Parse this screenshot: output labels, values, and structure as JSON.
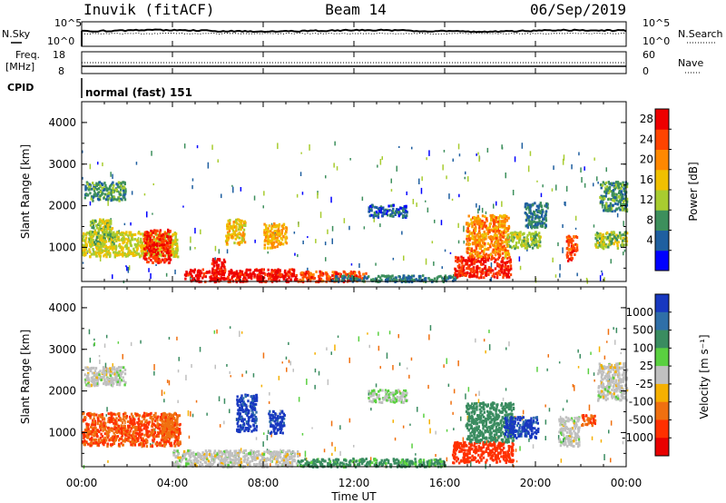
{
  "header": {
    "station": "Inuvik (fitACF)",
    "beam": "Beam 14",
    "date": "06/Sep/2019"
  },
  "nsky": {
    "left_label": "N.Sky",
    "right_label": "N.Search",
    "left_ticks": [
      "10^5",
      "10^0"
    ],
    "right_ticks": [
      "10^5",
      "10^0"
    ]
  },
  "freq": {
    "left_label_1": "Freq.",
    "left_label_2": "[MHz]",
    "right_label": "Nave",
    "left_ticks": [
      "18",
      "8"
    ],
    "right_ticks": [
      "60",
      "0"
    ]
  },
  "cpid": {
    "label": "CPID",
    "value": "normal (fast) 151"
  },
  "power_panel": {
    "ylabel": "Slant Range [km]",
    "yticks": [
      "4000",
      "3000",
      "2000",
      "1000"
    ],
    "colorbar_label": "Power [dB]",
    "colorbar_ticks": [
      "28",
      "24",
      "20",
      "16",
      "12",
      "8",
      "4"
    ],
    "colors": [
      "#0000ff",
      "#1f5fa0",
      "#3d8f5c",
      "#a8cc30",
      "#f0c000",
      "#ff8800",
      "#ff4400",
      "#ee0000"
    ]
  },
  "velocity_panel": {
    "ylabel": "Slant Range [km]",
    "yticks": [
      "4000",
      "3000",
      "2000",
      "1000"
    ],
    "colorbar_label": "Velocity [m s⁻¹]",
    "colorbar_ticks": [
      "1000",
      "500",
      "100",
      "25",
      "-25",
      "-100",
      "-500",
      "-1000"
    ],
    "colors": [
      "#1838c0",
      "#2f6fa8",
      "#3a8c60",
      "#5ad040",
      "#c0c0c0",
      "#f5b000",
      "#f07010",
      "#ff3000",
      "#e80000"
    ]
  },
  "x_axis": {
    "ticks": [
      "00:00",
      "04:00",
      "08:00",
      "12:00",
      "16:00",
      "20:00",
      "00:00"
    ],
    "label": "Time UT"
  },
  "chart_data": [
    {
      "type": "heatmap",
      "title": "Power",
      "xlabel": "Time UT",
      "ylabel": "Slant Range [km]",
      "xlim": [
        0,
        24
      ],
      "ylim": [
        180,
        4500
      ],
      "colorbar": {
        "label": "Power [dB]",
        "range": [
          0,
          32
        ]
      },
      "regions": [
        {
          "t": [
            0.0,
            4.2
          ],
          "r": [
            800,
            1400
          ],
          "value": 16
        },
        {
          "t": [
            2.7,
            3.9
          ],
          "r": [
            650,
            1450
          ],
          "value": 28
        },
        {
          "t": [
            0.1,
            1.9
          ],
          "r": [
            2150,
            2600
          ],
          "value": 10
        },
        {
          "t": [
            0.3,
            1.4
          ],
          "r": [
            1100,
            1700
          ],
          "value": 14
        },
        {
          "t": [
            4.5,
            9.5
          ],
          "r": [
            200,
            500
          ],
          "value": 30
        },
        {
          "t": [
            5.7,
            6.3
          ],
          "r": [
            350,
            750
          ],
          "value": 30
        },
        {
          "t": [
            6.3,
            7.2
          ],
          "r": [
            1100,
            1700
          ],
          "value": 18
        },
        {
          "t": [
            8.0,
            9.0
          ],
          "r": [
            1000,
            1600
          ],
          "value": 20
        },
        {
          "t": [
            9.5,
            12.5
          ],
          "r": [
            200,
            450
          ],
          "value": 26
        },
        {
          "t": [
            11.0,
            16.5
          ],
          "r": [
            200,
            350
          ],
          "value": 8
        },
        {
          "t": [
            12.6,
            14.3
          ],
          "r": [
            1750,
            2050
          ],
          "value": 6
        },
        {
          "t": [
            16.4,
            18.9
          ],
          "r": [
            300,
            800
          ],
          "value": 28
        },
        {
          "t": [
            16.9,
            18.8
          ],
          "r": [
            800,
            1800
          ],
          "value": 22
        },
        {
          "t": [
            18.7,
            20.2
          ],
          "r": [
            1000,
            1400
          ],
          "value": 14
        },
        {
          "t": [
            19.5,
            20.5
          ],
          "r": [
            1500,
            2100
          ],
          "value": 8
        },
        {
          "t": [
            21.3,
            21.8
          ],
          "r": [
            700,
            1300
          ],
          "value": 26
        },
        {
          "t": [
            22.6,
            24.0
          ],
          "r": [
            1000,
            1400
          ],
          "value": 14
        },
        {
          "t": [
            22.8,
            24.0
          ],
          "r": [
            1900,
            2600
          ],
          "value": 10
        }
      ]
    },
    {
      "type": "heatmap",
      "title": "Velocity",
      "xlabel": "Time UT",
      "ylabel": "Slant Range [km]",
      "xlim": [
        0,
        24
      ],
      "ylim": [
        180,
        4500
      ],
      "colorbar": {
        "label": "Velocity [m s⁻¹]",
        "range": [
          -1000,
          1000
        ]
      },
      "regions": [
        {
          "t": [
            0.0,
            4.3
          ],
          "r": [
            700,
            1500
          ],
          "value": -300
        },
        {
          "t": [
            0.1,
            1.9
          ],
          "r": [
            2150,
            2600
          ],
          "value": 0
        },
        {
          "t": [
            3.5,
            4.2
          ],
          "r": [
            900,
            1500
          ],
          "value": -250
        },
        {
          "t": [
            4.0,
            9.5
          ],
          "r": [
            200,
            600
          ],
          "value": 0
        },
        {
          "t": [
            6.8,
            7.7
          ],
          "r": [
            1050,
            1950
          ],
          "value": 900
        },
        {
          "t": [
            8.2,
            8.9
          ],
          "r": [
            1000,
            1550
          ],
          "value": 900
        },
        {
          "t": [
            9.5,
            16.0
          ],
          "r": [
            200,
            400
          ],
          "value": 80
        },
        {
          "t": [
            12.6,
            14.3
          ],
          "r": [
            1750,
            2050
          ],
          "value": 20
        },
        {
          "t": [
            16.3,
            19.0
          ],
          "r": [
            300,
            800
          ],
          "value": -400
        },
        {
          "t": [
            16.9,
            19.0
          ],
          "r": [
            800,
            1750
          ],
          "value": 150
        },
        {
          "t": [
            18.6,
            20.1
          ],
          "r": [
            900,
            1400
          ],
          "value": 900
        },
        {
          "t": [
            21.0,
            21.9
          ],
          "r": [
            700,
            1400
          ],
          "value": 0
        },
        {
          "t": [
            22.0,
            22.6
          ],
          "r": [
            1200,
            1450
          ],
          "value": -300
        },
        {
          "t": [
            22.7,
            24.0
          ],
          "r": [
            1800,
            2700
          ],
          "value": 0
        }
      ]
    }
  ]
}
